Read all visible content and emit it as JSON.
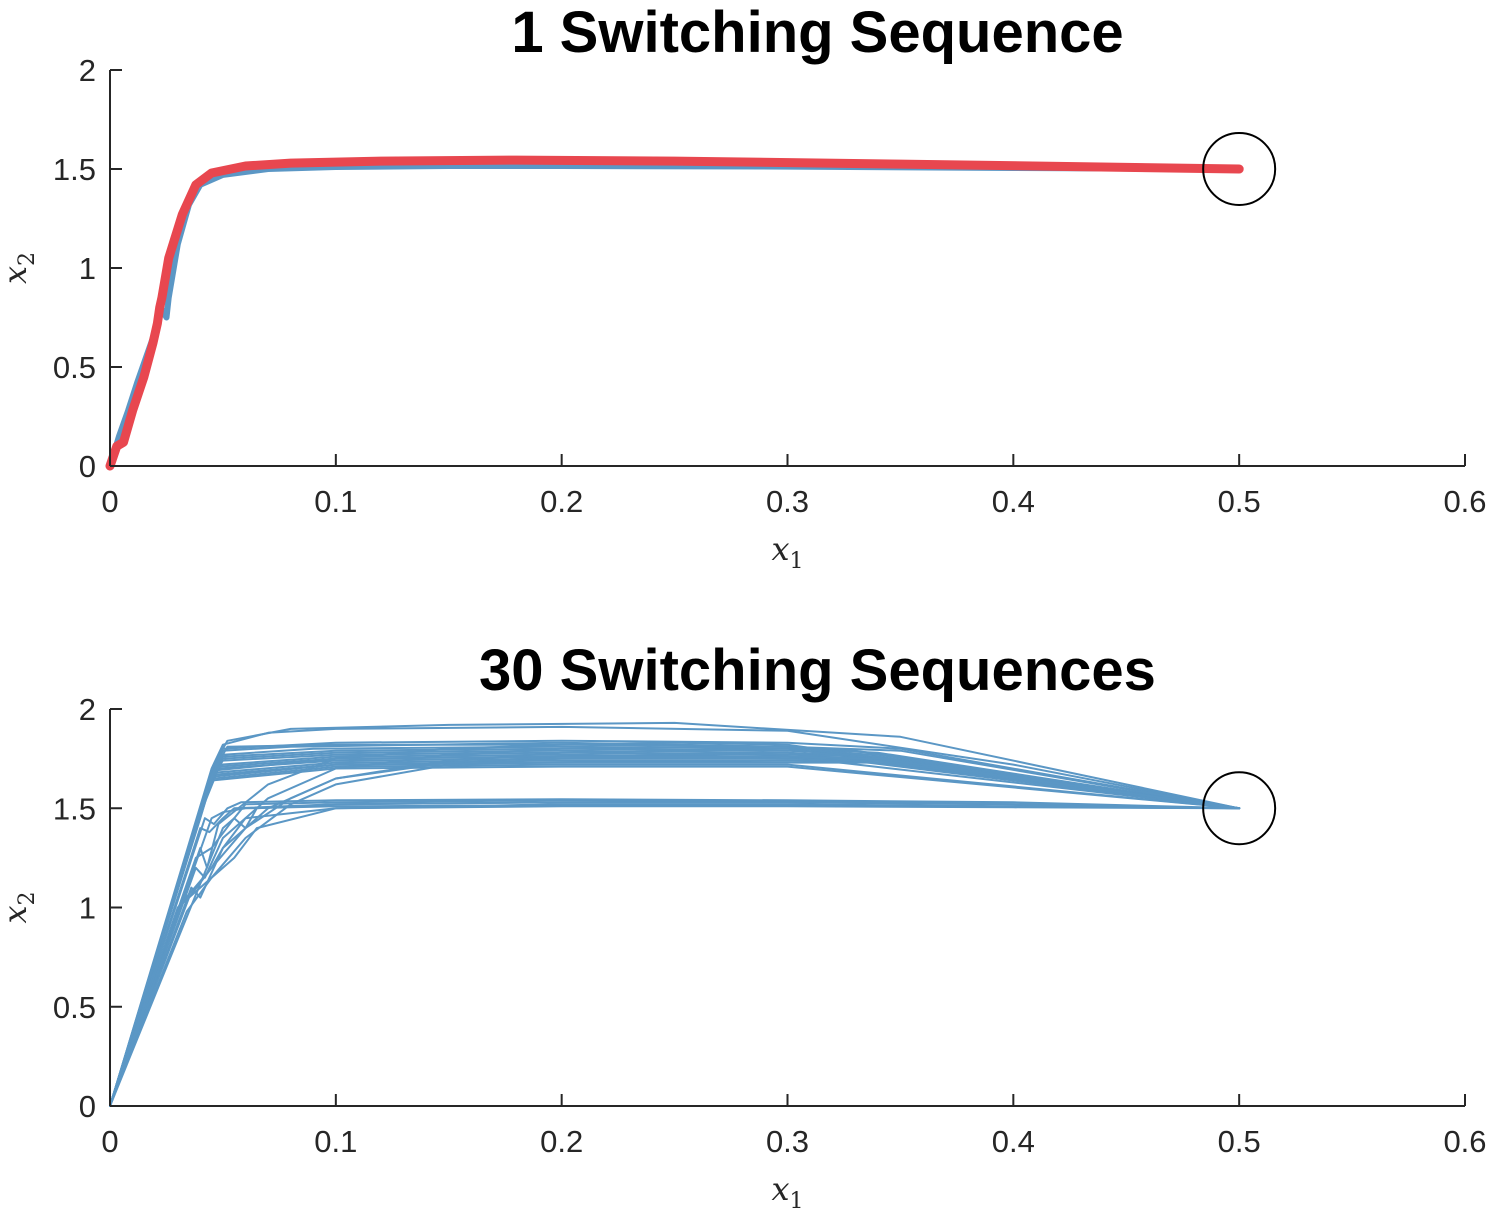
{
  "chart_data": [
    {
      "type": "line",
      "title": "1 Switching Sequence",
      "xlabel": "x",
      "xlabel_sub": "1",
      "ylabel": "x",
      "ylabel_sub": "2",
      "xlim": [
        0,
        0.6
      ],
      "ylim": [
        0,
        2
      ],
      "xticks": [
        "0",
        "0.1",
        "0.2",
        "0.3",
        "0.4",
        "0.5",
        "0.6"
      ],
      "yticks": [
        "0",
        "0.5",
        "1",
        "1.5",
        "2"
      ],
      "grid": false,
      "target_marker": {
        "x": 0.5,
        "y": 1.5
      },
      "series": [
        {
          "color": "#5b97c5",
          "width": 6,
          "x": [
            0,
            0.004,
            0.008,
            0.012,
            0.016,
            0.02,
            0.023,
            0.025,
            0.026,
            0.03,
            0.035,
            0.04,
            0.05,
            0.07,
            0.1,
            0.15,
            0.2,
            0.3,
            0.4,
            0.5
          ],
          "y": [
            0,
            0.15,
            0.28,
            0.42,
            0.55,
            0.68,
            0.79,
            0.75,
            0.85,
            1.12,
            1.32,
            1.42,
            1.47,
            1.5,
            1.51,
            1.515,
            1.515,
            1.512,
            1.505,
            1.5
          ]
        },
        {
          "color": "#e8474f",
          "width": 9,
          "x": [
            0,
            0.003,
            0.006,
            0.01,
            0.015,
            0.019,
            0.021,
            0.022,
            0.023,
            0.026,
            0.032,
            0.038,
            0.045,
            0.06,
            0.08,
            0.12,
            0.18,
            0.25,
            0.35,
            0.45,
            0.5
          ],
          "y": [
            0,
            0.1,
            0.12,
            0.28,
            0.45,
            0.62,
            0.72,
            0.8,
            0.85,
            1.05,
            1.27,
            1.42,
            1.48,
            1.515,
            1.53,
            1.54,
            1.545,
            1.54,
            1.525,
            1.508,
            1.5
          ]
        }
      ]
    },
    {
      "type": "line",
      "title": "30 Switching Sequences",
      "xlabel": "x",
      "xlabel_sub": "1",
      "ylabel": "x",
      "ylabel_sub": "2",
      "xlim": [
        0,
        0.6
      ],
      "ylim": [
        0,
        2
      ],
      "xticks": [
        "0",
        "0.1",
        "0.2",
        "0.3",
        "0.4",
        "0.5",
        "0.6"
      ],
      "yticks": [
        "0",
        "0.5",
        "1",
        "1.5",
        "2"
      ],
      "grid": false,
      "target_marker": {
        "x": 0.5,
        "y": 1.5
      },
      "series_color": "#5b97c5",
      "series": [
        {
          "x": [
            0,
            0.045,
            0.05,
            0.07,
            0.1,
            0.2,
            0.3,
            0.4,
            0.5
          ],
          "y": [
            0,
            1.7,
            1.82,
            1.88,
            1.9,
            1.91,
            1.89,
            1.72,
            1.5
          ]
        },
        {
          "x": [
            0,
            0.046,
            0.052,
            0.08,
            0.15,
            0.25,
            0.35,
            0.5
          ],
          "y": [
            0,
            1.72,
            1.84,
            1.9,
            1.92,
            1.93,
            1.86,
            1.5
          ]
        },
        {
          "x": [
            0,
            0.045,
            0.05,
            0.08,
            0.2,
            0.3,
            0.33,
            0.5
          ],
          "y": [
            0,
            1.68,
            1.79,
            1.81,
            1.83,
            1.81,
            1.79,
            1.5
          ]
        },
        {
          "x": [
            0,
            0.045,
            0.05,
            0.09,
            0.2,
            0.3,
            0.34,
            0.5
          ],
          "y": [
            0,
            1.67,
            1.77,
            1.8,
            1.81,
            1.8,
            1.78,
            1.5
          ]
        },
        {
          "x": [
            0,
            0.045,
            0.05,
            0.1,
            0.2,
            0.3,
            0.34,
            0.5
          ],
          "y": [
            0,
            1.66,
            1.76,
            1.79,
            1.8,
            1.79,
            1.77,
            1.5
          ]
        },
        {
          "x": [
            0,
            0.044,
            0.05,
            0.1,
            0.2,
            0.3,
            0.34,
            0.5
          ],
          "y": [
            0,
            1.65,
            1.75,
            1.78,
            1.79,
            1.78,
            1.76,
            1.5
          ]
        },
        {
          "x": [
            0,
            0.044,
            0.05,
            0.1,
            0.2,
            0.3,
            0.34,
            0.5
          ],
          "y": [
            0,
            1.64,
            1.74,
            1.77,
            1.78,
            1.77,
            1.76,
            1.5
          ]
        },
        {
          "x": [
            0,
            0.043,
            0.048,
            0.1,
            0.2,
            0.3,
            0.34,
            0.5
          ],
          "y": [
            0,
            1.6,
            1.71,
            1.75,
            1.76,
            1.75,
            1.75,
            1.5
          ]
        },
        {
          "x": [
            0,
            0.043,
            0.048,
            0.1,
            0.2,
            0.3,
            0.34,
            0.5
          ],
          "y": [
            0,
            1.58,
            1.7,
            1.74,
            1.75,
            1.75,
            1.74,
            1.5
          ]
        },
        {
          "x": [
            0,
            0.042,
            0.047,
            0.1,
            0.2,
            0.3,
            0.34,
            0.5
          ],
          "y": [
            0,
            1.55,
            1.68,
            1.73,
            1.74,
            1.74,
            1.74,
            1.5
          ]
        },
        {
          "x": [
            0,
            0.042,
            0.047,
            0.1,
            0.2,
            0.3,
            0.34,
            0.5
          ],
          "y": [
            0,
            1.53,
            1.67,
            1.72,
            1.73,
            1.74,
            1.73,
            1.5
          ]
        },
        {
          "x": [
            0,
            0.041,
            0.046,
            0.1,
            0.2,
            0.3,
            0.34,
            0.5
          ],
          "y": [
            0,
            1.5,
            1.66,
            1.72,
            1.73,
            1.73,
            1.73,
            1.5
          ]
        },
        {
          "x": [
            0,
            0.04,
            0.046,
            0.1,
            0.2,
            0.3,
            0.5
          ],
          "y": [
            0,
            1.48,
            1.65,
            1.71,
            1.72,
            1.72,
            1.5
          ]
        },
        {
          "x": [
            0,
            0.04,
            0.045,
            0.1,
            0.2,
            0.3,
            0.5
          ],
          "y": [
            0,
            1.45,
            1.64,
            1.7,
            1.71,
            1.71,
            1.5
          ]
        },
        {
          "x": [
            0,
            0.04,
            0.043,
            0.048,
            0.07,
            0.1,
            0.15,
            0.2,
            0.25,
            0.3,
            0.5
          ],
          "y": [
            0,
            1.3,
            1.2,
            1.42,
            1.62,
            1.75,
            1.8,
            1.82,
            1.83,
            1.82,
            1.5
          ]
        },
        {
          "x": [
            0,
            0.038,
            0.042,
            0.05,
            0.07,
            0.1,
            0.15,
            0.2,
            0.3,
            0.5
          ],
          "y": [
            0,
            1.2,
            1.15,
            1.35,
            1.55,
            1.7,
            1.77,
            1.8,
            1.81,
            1.5
          ]
        },
        {
          "x": [
            0,
            0.036,
            0.04,
            0.05,
            0.07,
            0.1,
            0.15,
            0.2,
            0.3,
            0.5
          ],
          "y": [
            0,
            1.1,
            1.05,
            1.3,
            1.5,
            1.65,
            1.74,
            1.78,
            1.8,
            1.5
          ]
        },
        {
          "x": [
            0,
            0.035,
            0.045,
            0.06,
            0.08,
            0.1,
            0.15,
            0.2,
            0.3,
            0.5
          ],
          "y": [
            0,
            1.05,
            1.2,
            1.4,
            1.55,
            1.65,
            1.73,
            1.76,
            1.78,
            1.5
          ]
        },
        {
          "x": [
            0,
            0.034,
            0.045,
            0.06,
            0.08,
            0.1,
            0.15,
            0.2,
            0.3,
            0.5
          ],
          "y": [
            0,
            0.98,
            1.15,
            1.35,
            1.52,
            1.62,
            1.72,
            1.75,
            1.76,
            1.5
          ]
        },
        {
          "x": [
            0,
            0.04,
            0.044,
            0.05,
            0.055,
            0.1,
            0.2,
            0.3,
            0.4,
            0.5
          ],
          "y": [
            0,
            1.4,
            1.38,
            1.45,
            1.5,
            1.52,
            1.53,
            1.53,
            1.52,
            1.5
          ]
        },
        {
          "x": [
            0,
            0.042,
            0.046,
            0.052,
            0.058,
            0.1,
            0.2,
            0.3,
            0.4,
            0.5
          ],
          "y": [
            0,
            1.45,
            1.42,
            1.5,
            1.53,
            1.54,
            1.545,
            1.54,
            1.53,
            1.5
          ]
        },
        {
          "x": [
            0,
            0.045,
            0.05,
            0.06,
            0.1,
            0.2,
            0.3,
            0.4,
            0.5
          ],
          "y": [
            0,
            1.45,
            1.48,
            1.5,
            1.51,
            1.515,
            1.512,
            1.508,
            1.5
          ]
        },
        {
          "x": [
            0,
            0.038,
            0.045,
            0.055,
            0.06,
            0.065,
            0.1,
            0.2,
            0.3,
            0.4,
            0.5
          ],
          "y": [
            0,
            1.25,
            1.3,
            1.45,
            1.4,
            1.5,
            1.52,
            1.53,
            1.53,
            1.52,
            1.5
          ]
        },
        {
          "x": [
            0,
            0.03,
            0.045,
            0.05,
            0.06,
            0.1,
            0.2,
            0.3,
            0.4,
            0.5
          ],
          "y": [
            0,
            1.0,
            1.2,
            1.3,
            1.45,
            1.5,
            1.51,
            1.51,
            1.505,
            1.5
          ]
        },
        {
          "x": [
            0,
            0.05,
            0.055,
            0.06,
            0.1,
            0.2,
            0.3,
            0.4,
            0.5
          ],
          "y": [
            0,
            1.4,
            1.45,
            1.52,
            1.53,
            1.54,
            1.535,
            1.52,
            1.5
          ]
        },
        {
          "x": [
            0,
            0.032,
            0.04,
            0.055,
            0.065,
            0.1,
            0.2,
            0.3,
            0.4,
            0.5
          ],
          "y": [
            0,
            1.02,
            1.1,
            1.25,
            1.4,
            1.5,
            1.52,
            1.52,
            1.51,
            1.5
          ]
        },
        {
          "x": [
            0,
            0.046,
            0.05,
            0.1,
            0.2,
            0.3,
            0.35,
            0.5
          ],
          "y": [
            0,
            1.69,
            1.8,
            1.83,
            1.84,
            1.83,
            1.8,
            1.5
          ]
        },
        {
          "x": [
            0,
            0.044,
            0.049,
            0.1,
            0.2,
            0.3,
            0.34,
            0.5
          ],
          "y": [
            0,
            1.62,
            1.72,
            1.76,
            1.77,
            1.76,
            1.75,
            1.5
          ]
        },
        {
          "x": [
            0,
            0.047,
            0.052,
            0.1,
            0.2,
            0.3,
            0.35,
            0.5
          ],
          "y": [
            0,
            1.71,
            1.81,
            1.82,
            1.82,
            1.81,
            1.79,
            1.5
          ]
        },
        {
          "x": [
            0,
            0.041,
            0.046,
            0.1,
            0.2,
            0.3,
            0.34,
            0.5
          ],
          "y": [
            0,
            1.52,
            1.69,
            1.75,
            1.76,
            1.76,
            1.75,
            1.5
          ]
        }
      ]
    }
  ]
}
